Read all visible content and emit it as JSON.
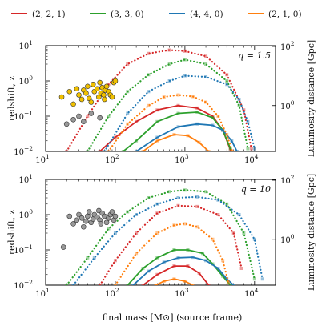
{
  "legend": [
    {
      "label": "(2, 2, 1)",
      "color": "#d62728"
    },
    {
      "label": "(3, 3, 0)",
      "color": "#2ca02c"
    },
    {
      "label": "(4, 4, 0)",
      "color": "#1f77b4"
    },
    {
      "label": "(2, 1, 0)",
      "color": "#ff7f0e"
    }
  ],
  "axes": {
    "xlabel": "final mass [M⊙] (source frame)",
    "ylabel": "redshift, z",
    "y2label": "Luminosity distance [Gpc]",
    "xscale": "log",
    "yscale": "log",
    "xlim": [
      10,
      20000
    ],
    "ylim": [
      0.01,
      10
    ],
    "xticks": [
      {
        "v": 10,
        "base": "10",
        "exp": "1"
      },
      {
        "v": 100,
        "base": "10",
        "exp": "2"
      },
      {
        "v": 1000,
        "base": "10",
        "exp": "3"
      },
      {
        "v": 10000,
        "base": "10",
        "exp": "4"
      }
    ],
    "yticks": [
      {
        "v": 0.01,
        "base": "10",
        "exp": "−2"
      },
      {
        "v": 0.1,
        "base": "10",
        "exp": "−1"
      },
      {
        "v": 1,
        "base": "10",
        "exp": "0"
      },
      {
        "v": 10,
        "base": "10",
        "exp": "1"
      }
    ],
    "y2ticks": [
      {
        "z": 0.2,
        "base": "10",
        "exp": "0"
      },
      {
        "z": 9.5,
        "base": "10",
        "exp": "2"
      }
    ]
  },
  "chart_data": [
    {
      "type": "line",
      "panel_label": "q = 1.5",
      "xscale": "log",
      "yscale": "log",
      "series": [
        {
          "name": "(2, 2, 1)",
          "style": "solid",
          "color": "#d62728",
          "x": [
            60,
            100,
            200,
            400,
            800,
            1500,
            2500,
            3500,
            4500
          ],
          "y": [
            0.01,
            0.025,
            0.07,
            0.15,
            0.2,
            0.17,
            0.1,
            0.04,
            0.011
          ]
        },
        {
          "name": "(3, 3, 0)",
          "style": "solid",
          "color": "#2ca02c",
          "x": [
            130,
            200,
            400,
            800,
            1500,
            2500,
            3500,
            4500
          ],
          "y": [
            0.01,
            0.02,
            0.07,
            0.12,
            0.13,
            0.09,
            0.04,
            0.012
          ]
        },
        {
          "name": "(4, 4, 0)",
          "style": "solid",
          "color": "#1f77b4",
          "x": [
            200,
            400,
            800,
            1500,
            2500,
            3500,
            4700,
            5600
          ],
          "y": [
            0.01,
            0.025,
            0.05,
            0.06,
            0.055,
            0.04,
            0.02,
            0.01
          ]
        },
        {
          "name": "(2, 1, 0)",
          "style": "solid",
          "color": "#ff7f0e",
          "x": [
            250,
            400,
            700,
            1100,
            1600,
            2200
          ],
          "y": [
            0.01,
            0.02,
            0.03,
            0.028,
            0.018,
            0.01
          ]
        },
        {
          "name": "(2, 2, 1)",
          "style": "dotted",
          "color": "#d62728",
          "x": [
            20,
            40,
            80,
            150,
            300,
            600,
            1000,
            2000,
            4000,
            7000,
            9000
          ],
          "y": [
            0.01,
            0.1,
            0.8,
            3,
            6,
            7.5,
            7,
            5,
            1.5,
            0.15,
            0.012
          ]
        },
        {
          "name": "(3, 3, 0)",
          "style": "dotted",
          "color": "#2ca02c",
          "x": [
            40,
            80,
            150,
            300,
            600,
            1000,
            2000,
            4000,
            6000,
            8000
          ],
          "y": [
            0.01,
            0.1,
            0.5,
            1.5,
            3,
            4,
            3,
            1,
            0.2,
            0.012
          ]
        },
        {
          "name": "(4, 4, 0)",
          "style": "dotted",
          "color": "#1f77b4",
          "x": [
            70,
            150,
            300,
            600,
            1000,
            2000,
            4000,
            6000,
            8000,
            10000
          ],
          "y": [
            0.01,
            0.12,
            0.5,
            1,
            1.4,
            1.3,
            0.8,
            0.3,
            0.07,
            0.012
          ]
        },
        {
          "name": "(2, 1, 0)",
          "style": "dotted",
          "color": "#ff7f0e",
          "x": [
            80,
            150,
            300,
            500,
            800,
            1300,
            2000,
            3000,
            4000,
            4800
          ],
          "y": [
            0.01,
            0.06,
            0.2,
            0.35,
            0.4,
            0.36,
            0.25,
            0.1,
            0.03,
            0.01
          ]
        }
      ],
      "events_yellow": {
        "color": "#f0c000",
        "x": [
          17,
          22,
          25,
          28,
          30,
          33,
          35,
          38,
          40,
          42,
          45,
          48,
          50,
          55,
          58,
          60,
          62,
          65,
          68,
          70,
          72,
          75,
          80,
          85,
          90,
          95,
          100
        ],
        "y": [
          0.35,
          0.5,
          0.22,
          0.6,
          0.4,
          0.3,
          0.55,
          0.45,
          0.7,
          0.32,
          0.25,
          0.8,
          0.5,
          0.6,
          0.35,
          0.9,
          0.45,
          0.65,
          0.4,
          0.3,
          0.55,
          0.7,
          0.5,
          0.4,
          0.35,
          0.9,
          1.0
        ]
      },
      "events_gray": {
        "color": "#999999",
        "x": [
          20,
          25,
          30,
          35,
          45,
          60
        ],
        "y": [
          0.06,
          0.08,
          0.1,
          0.07,
          0.12,
          0.09
        ]
      }
    },
    {
      "type": "line",
      "panel_label": "q = 10",
      "xscale": "log",
      "yscale": "log",
      "series": [
        {
          "name": "(2, 2, 1)",
          "style": "solid",
          "color": "#d62728",
          "x": [
            250,
            400,
            700,
            1100,
            1600,
            2200
          ],
          "y": [
            0.01,
            0.02,
            0.035,
            0.035,
            0.022,
            0.01
          ]
        },
        {
          "name": "(3, 3, 0)",
          "style": "solid",
          "color": "#2ca02c",
          "x": [
            150,
            250,
            400,
            700,
            1100,
            1800,
            2500,
            3500,
            4500
          ],
          "y": [
            0.01,
            0.03,
            0.06,
            0.1,
            0.1,
            0.08,
            0.04,
            0.018,
            0.01
          ]
        },
        {
          "name": "(4, 4, 0)",
          "style": "solid",
          "color": "#1f77b4",
          "x": [
            180,
            300,
            500,
            800,
            1300,
            2000,
            3000,
            4000,
            5000
          ],
          "y": [
            0.01,
            0.025,
            0.045,
            0.06,
            0.062,
            0.05,
            0.03,
            0.015,
            0.01
          ]
        },
        {
          "name": "(2, 1, 0)",
          "style": "solid",
          "color": "#ff7f0e",
          "x": [
            380,
            500,
            700,
            1000,
            1300
          ],
          "y": [
            0.01,
            0.013,
            0.015,
            0.013,
            0.01
          ]
        },
        {
          "name": "(2, 2, 1)",
          "style": "dotted",
          "color": "#d62728",
          "x": [
            60,
            100,
            200,
            400,
            800,
            1500,
            3000,
            5000,
            6500
          ],
          "y": [
            0.01,
            0.05,
            0.3,
            1.1,
            1.8,
            1.7,
            1,
            0.3,
            0.03
          ]
        },
        {
          "name": "(3, 3, 0)",
          "style": "dotted",
          "color": "#2ca02c",
          "x": [
            20,
            40,
            80,
            150,
            300,
            600,
            1000,
            2000,
            4000,
            7000,
            10000
          ],
          "y": [
            0.01,
            0.06,
            0.4,
            1.2,
            3,
            4.5,
            5,
            4.5,
            2,
            0.3,
            0.015
          ]
        },
        {
          "name": "(4, 4, 0)",
          "style": "dotted",
          "color": "#1f77b4",
          "x": [
            25,
            50,
            100,
            200,
            400,
            800,
            1500,
            3000,
            6000,
            10000,
            13000
          ],
          "y": [
            0.01,
            0.06,
            0.3,
            1,
            2,
            3,
            3.2,
            2.6,
            1,
            0.2,
            0.015
          ]
        },
        {
          "name": "(2, 1, 0)",
          "style": "dotted",
          "color": "#ff7f0e",
          "x": [
            100,
            200,
            400,
            700,
            1000,
            1500,
            2500,
            3500,
            4200
          ],
          "y": [
            0.01,
            0.08,
            0.3,
            0.5,
            0.55,
            0.45,
            0.2,
            0.05,
            0.012
          ]
        }
      ],
      "events_gray": {
        "color": "#999999",
        "x": [
          18,
          22,
          25,
          28,
          30,
          33,
          35,
          38,
          40,
          42,
          45,
          48,
          50,
          55,
          58,
          60,
          62,
          65,
          70,
          75,
          80,
          85,
          90,
          95,
          100
        ],
        "y": [
          0.12,
          0.9,
          0.55,
          0.7,
          1.0,
          0.8,
          0.45,
          0.65,
          0.9,
          1.2,
          0.6,
          0.75,
          1.0,
          0.85,
          1.3,
          0.7,
          0.55,
          1.1,
          0.9,
          0.6,
          0.8,
          1.0,
          1.2,
          0.7,
          0.9
        ]
      }
    }
  ]
}
